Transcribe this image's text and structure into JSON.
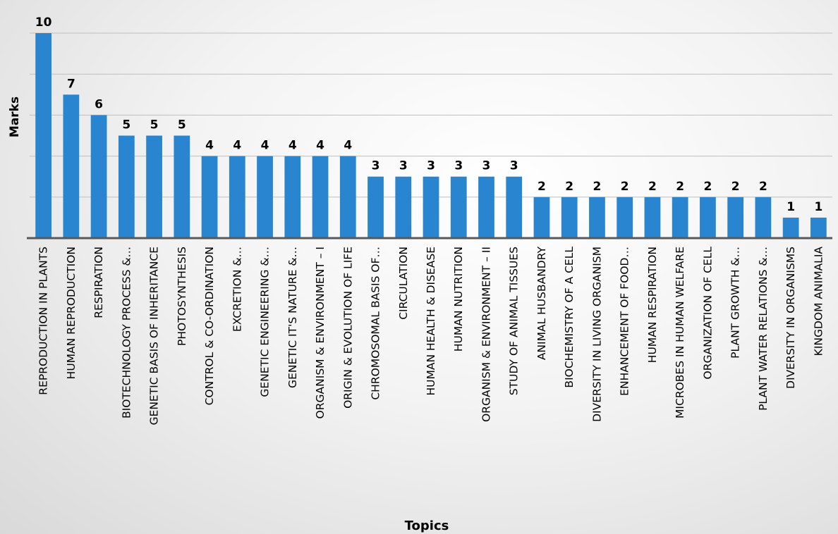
{
  "chart_data": {
    "type": "bar",
    "title": "",
    "xlabel": "Topics",
    "ylabel": "Marks",
    "ylim": [
      0,
      10
    ],
    "grid": true,
    "bar_color": "#2a85d0",
    "gridline_color": "#bfbfbf",
    "axis_color": "#595959",
    "categories": [
      "REPRODUCTION IN PLANTS",
      "HUMAN REPRODUCTION",
      "RESPIRATION",
      "BIOTECHNOLOGY PROCESS &…",
      "GENETIC BASIS OF INHERITANCE",
      "PHOTOSYNTHESIS",
      "CONTROL & CO-ORDINATION",
      "EXCRETION &…",
      "GENETIC ENGINEERING &…",
      "GENETIC IT'S NATURE &…",
      "ORGANISM & ENVIRONMENT – I",
      "ORIGIN & EVOLUTION OF LIFE",
      "CHROMOSOMAL BASIS OF…",
      "CIRCULATION",
      "HUMAN HEALTH & DISEASE",
      "HUMAN NUTRITION",
      "ORGANISM & ENVIRONMENT – II",
      "STUDY OF ANIMAL TISSUES",
      "ANIMAL HUSBANDRY",
      "BIOCHEMISTRY OF A CELL",
      "DIVERSITY IN LIVING ORGANISM",
      "ENHANCEMENT OF FOOD…",
      "HUMAN RESPIRATION",
      "MICROBES IN HUMAN WELFARE",
      "ORGANIZATION OF CELL",
      "PLANT GROWTH &…",
      "PLANT WATER RELATIONS &…",
      "DIVERSITY IN ORGANISMS",
      "KINGDOM ANIMALIA"
    ],
    "values": [
      10,
      7,
      6,
      5,
      5,
      5,
      4,
      4,
      4,
      4,
      4,
      4,
      3,
      3,
      3,
      3,
      3,
      3,
      2,
      2,
      2,
      2,
      2,
      2,
      2,
      2,
      2,
      1,
      1
    ]
  }
}
